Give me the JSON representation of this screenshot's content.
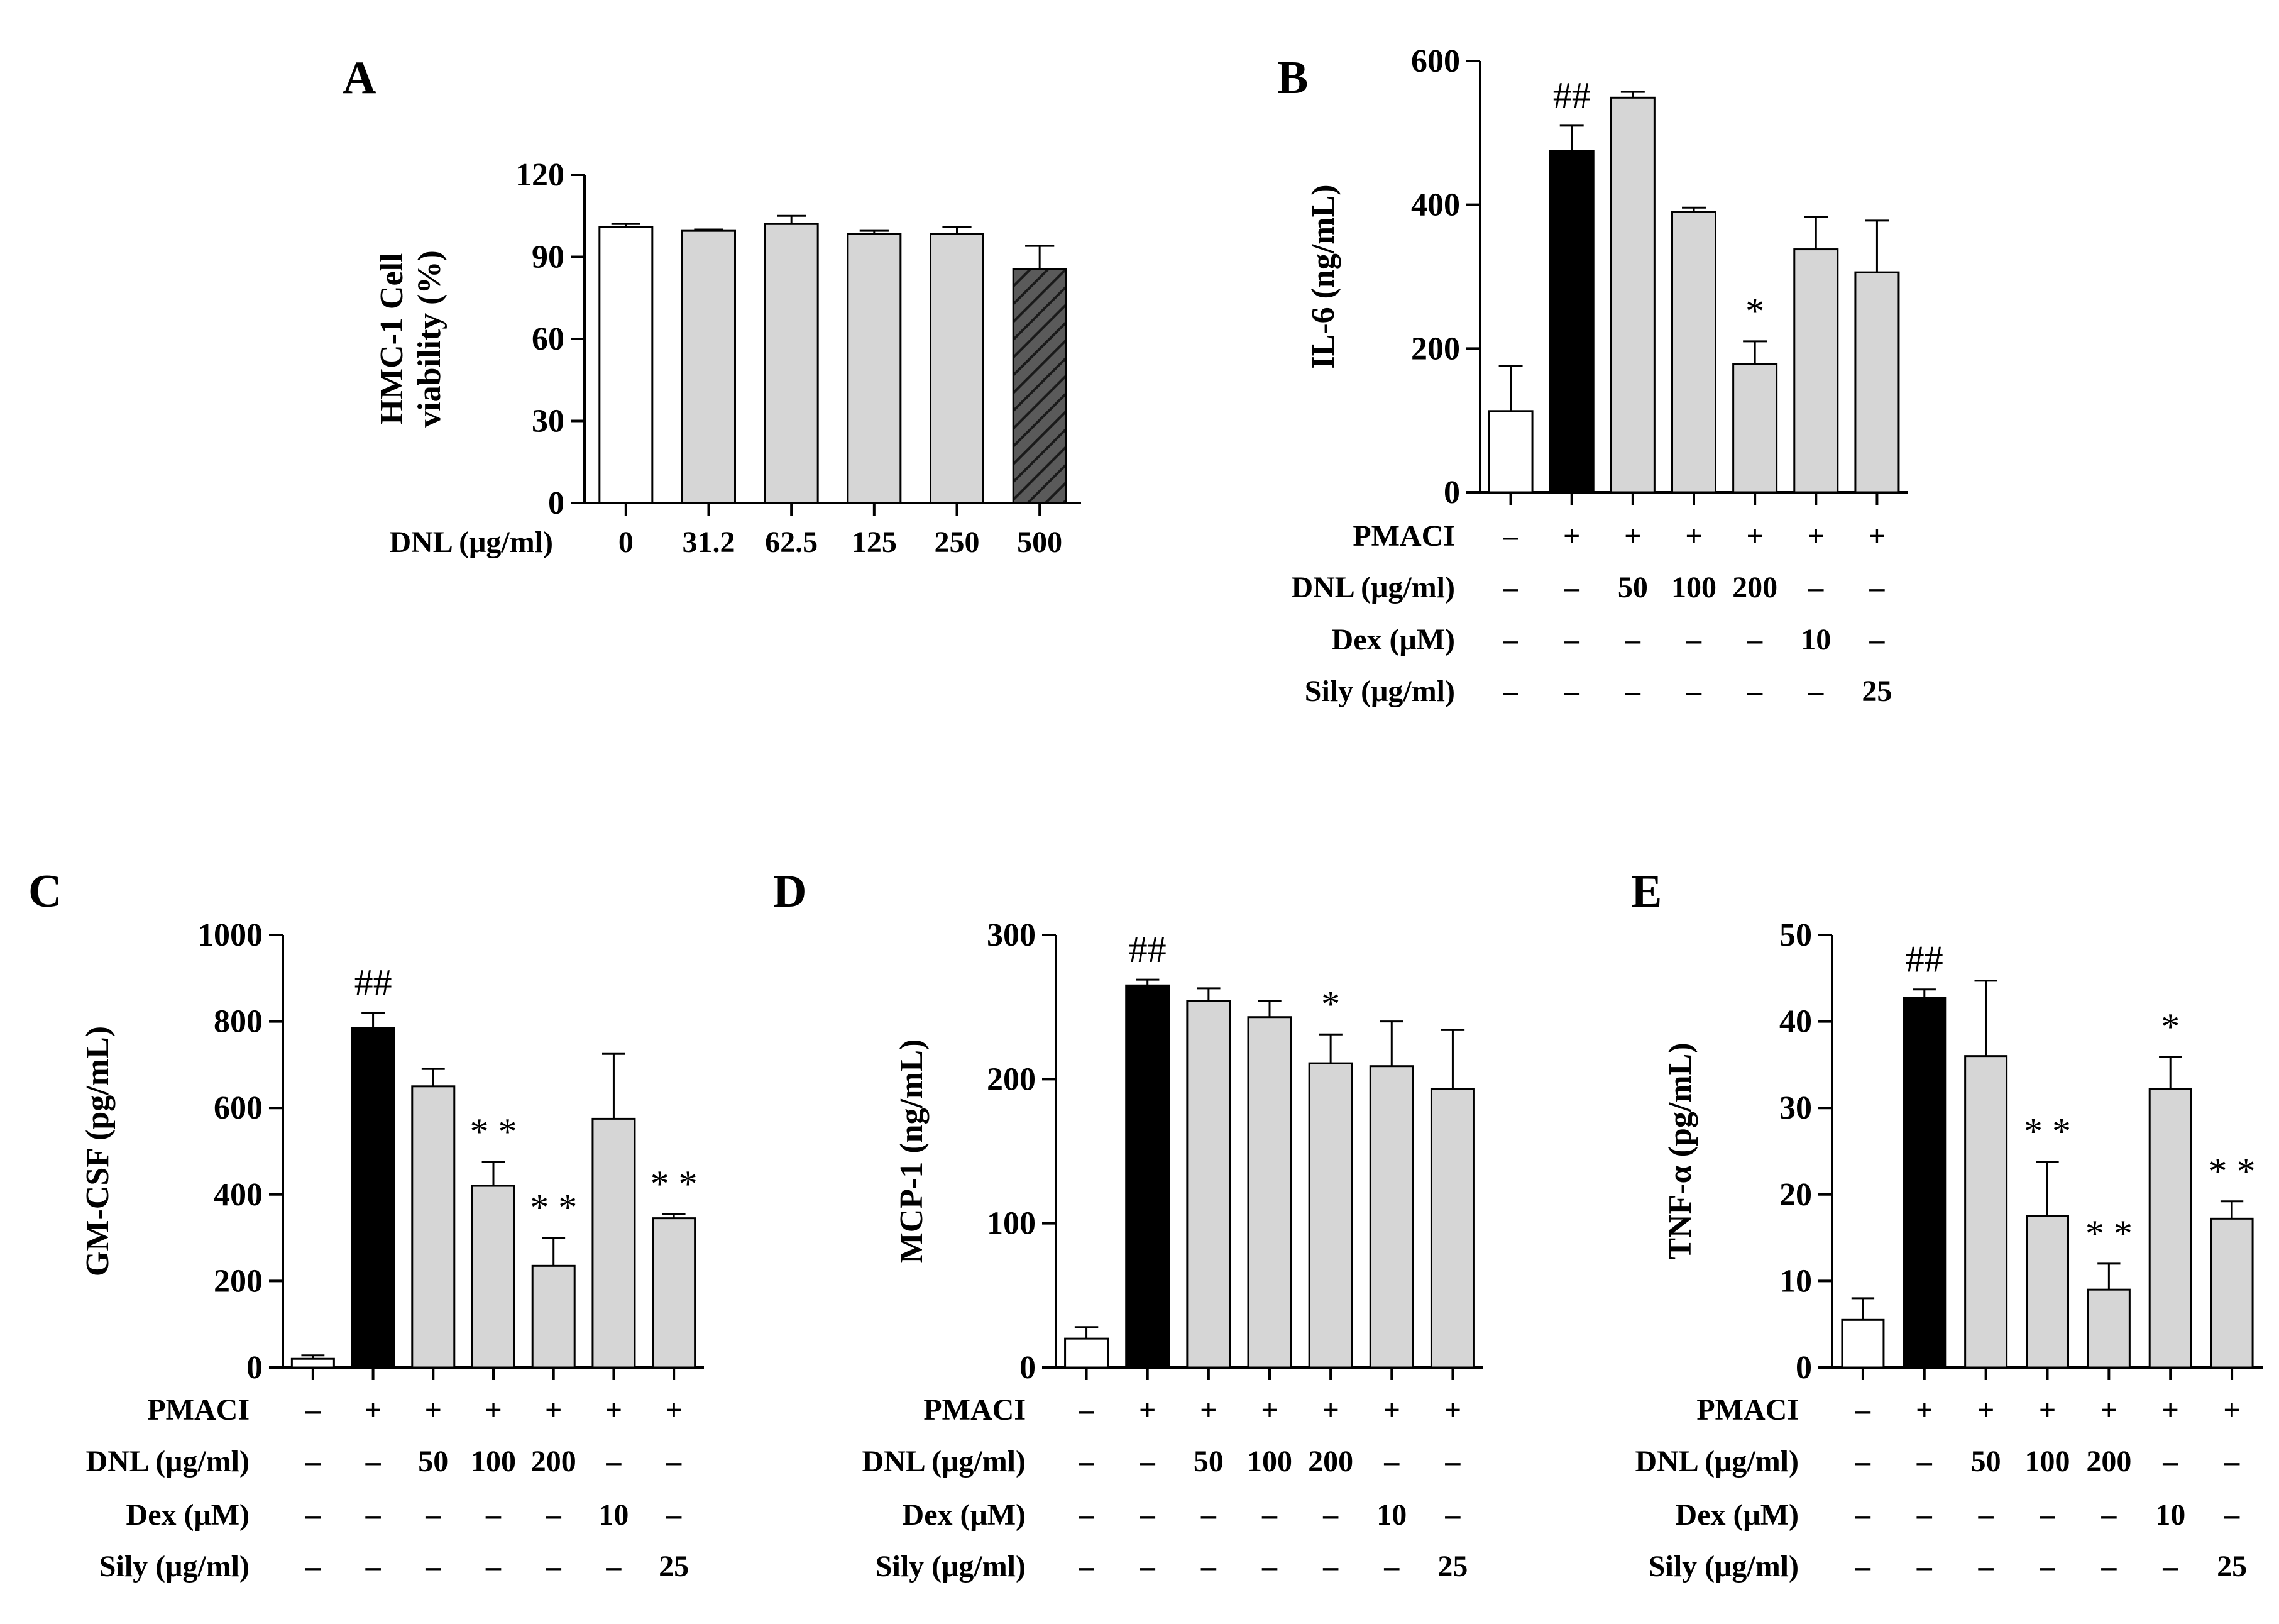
{
  "chart_data": [
    {
      "panel": "A",
      "type": "bar",
      "ylabel": [
        "HMC-1 Cell",
        "viability (%)"
      ],
      "ylim": [
        0,
        120
      ],
      "yticks": [
        0,
        30,
        60,
        90,
        120
      ],
      "xlabel": "DNL (μg/ml)",
      "categories": [
        "0",
        "31.2",
        "62.5",
        "125",
        "250",
        "500"
      ],
      "values": [
        101,
        99.5,
        102,
        98.5,
        98.5,
        85.5
      ],
      "errors": [
        1,
        0.5,
        3,
        1,
        2.5,
        8.5
      ],
      "fills": [
        "white",
        "gray",
        "gray",
        "gray",
        "gray",
        "hatch"
      ],
      "annotations": [
        "",
        "",
        "",
        "",
        "",
        ""
      ]
    },
    {
      "panel": "B",
      "type": "bar",
      "ylabel": [
        "IL-6 (ng/mL)"
      ],
      "ylim": [
        0,
        600
      ],
      "yticks": [
        0,
        200,
        400,
        600
      ],
      "values": [
        113,
        475,
        549,
        390,
        178,
        338,
        306
      ],
      "errors": [
        63,
        35,
        8,
        6,
        32,
        45,
        72
      ],
      "fills": [
        "white",
        "black",
        "gray",
        "gray",
        "gray",
        "gray",
        "gray"
      ],
      "annotations": [
        "",
        "##",
        "",
        "",
        "*",
        "",
        ""
      ],
      "condition_rows": [
        {
          "label": "PMACI",
          "values": [
            "–",
            "+",
            "+",
            "+",
            "+",
            "+",
            "+"
          ]
        },
        {
          "label": "DNL (μg/ml)",
          "values": [
            "–",
            "–",
            "50",
            "100",
            "200",
            "–",
            "–"
          ]
        },
        {
          "label": "Dex (μM)",
          "values": [
            "–",
            "–",
            "–",
            "–",
            "–",
            "10",
            "–"
          ]
        },
        {
          "label": "Sily (μg/ml)",
          "values": [
            "–",
            "–",
            "–",
            "–",
            "–",
            "–",
            "25"
          ]
        }
      ]
    },
    {
      "panel": "C",
      "type": "bar",
      "ylabel": [
        "GM-CSF (pg/mL)"
      ],
      "ylim": [
        0,
        1000
      ],
      "yticks": [
        0,
        200,
        400,
        600,
        800,
        1000
      ],
      "values": [
        20,
        785,
        650,
        420,
        235,
        575,
        345
      ],
      "errors": [
        8,
        35,
        40,
        55,
        65,
        150,
        10
      ],
      "fills": [
        "white",
        "black",
        "gray",
        "gray",
        "gray",
        "gray",
        "gray"
      ],
      "annotations": [
        "",
        "##",
        "",
        "* *",
        "* *",
        "",
        "* *"
      ],
      "condition_rows": [
        {
          "label": "PMACI",
          "values": [
            "–",
            "+",
            "+",
            "+",
            "+",
            "+",
            "+"
          ]
        },
        {
          "label": "DNL (μg/ml)",
          "values": [
            "–",
            "–",
            "50",
            "100",
            "200",
            "–",
            "–"
          ]
        },
        {
          "label": "Dex (μM)",
          "values": [
            "–",
            "–",
            "–",
            "–",
            "–",
            "10",
            "–"
          ]
        },
        {
          "label": "Sily (μg/ml)",
          "values": [
            "–",
            "–",
            "–",
            "–",
            "–",
            "–",
            "25"
          ]
        }
      ]
    },
    {
      "panel": "D",
      "type": "bar",
      "ylabel": [
        "MCP-1 (ng/mL)"
      ],
      "ylim": [
        0,
        300
      ],
      "yticks": [
        0,
        100,
        200,
        300
      ],
      "values": [
        20,
        265,
        254,
        243,
        211,
        209,
        193
      ],
      "errors": [
        8,
        4,
        9,
        11,
        20,
        31,
        41
      ],
      "fills": [
        "white",
        "black",
        "gray",
        "gray",
        "gray",
        "gray",
        "gray"
      ],
      "annotations": [
        "",
        "##",
        "",
        "",
        "*",
        "",
        ""
      ],
      "condition_rows": [
        {
          "label": "PMACI",
          "values": [
            "–",
            "+",
            "+",
            "+",
            "+",
            "+",
            "+"
          ]
        },
        {
          "label": "DNL (μg/ml)",
          "values": [
            "–",
            "–",
            "50",
            "100",
            "200",
            "–",
            "–"
          ]
        },
        {
          "label": "Dex (μM)",
          "values": [
            "–",
            "–",
            "–",
            "–",
            "–",
            "10",
            "–"
          ]
        },
        {
          "label": "Sily (μg/ml)",
          "values": [
            "–",
            "–",
            "–",
            "–",
            "–",
            "–",
            "25"
          ]
        }
      ]
    },
    {
      "panel": "E",
      "type": "bar",
      "ylabel": [
        "TNF-α (pg/mL)"
      ],
      "ylim": [
        0,
        50
      ],
      "yticks": [
        0,
        10,
        20,
        30,
        40,
        50
      ],
      "values": [
        5.5,
        42.7,
        36,
        17.5,
        9,
        32.2,
        17.2
      ],
      "errors": [
        2.5,
        1,
        8.7,
        6.3,
        3,
        3.7,
        2
      ],
      "fills": [
        "white",
        "black",
        "gray",
        "gray",
        "gray",
        "gray",
        "gray"
      ],
      "annotations": [
        "",
        "##",
        "",
        "* *",
        "* *",
        "*",
        "* *"
      ],
      "condition_rows": [
        {
          "label": "PMACI",
          "values": [
            "–",
            "+",
            "+",
            "+",
            "+",
            "+",
            "+"
          ]
        },
        {
          "label": "DNL (μg/ml)",
          "values": [
            "–",
            "–",
            "50",
            "100",
            "200",
            "–",
            "–"
          ]
        },
        {
          "label": "Dex (μM)",
          "values": [
            "–",
            "–",
            "–",
            "–",
            "–",
            "10",
            "–"
          ]
        },
        {
          "label": "Sily (μg/ml)",
          "values": [
            "–",
            "–",
            "–",
            "–",
            "–",
            "–",
            "25"
          ]
        }
      ]
    }
  ],
  "colors": {
    "gray": "#d6d6d6",
    "black": "#000000",
    "white": "#ffffff",
    "hatch": "#5a5a5a"
  }
}
